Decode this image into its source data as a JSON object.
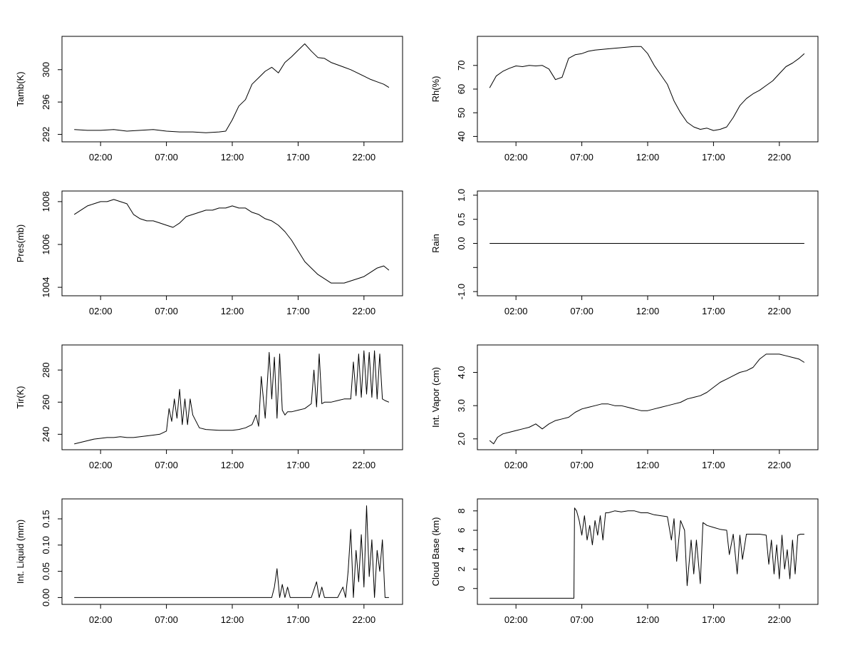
{
  "chart_data": [
    {
      "type": "line",
      "ylabel": "Tamb(K)",
      "xlabel": "",
      "x_ticks": [
        "02:00",
        "07:00",
        "12:00",
        "17:00",
        "22:00"
      ],
      "y_ticks": [
        292,
        296,
        300
      ],
      "ylim": [
        291.6,
        303.6
      ],
      "xlim": [
        0,
        24
      ],
      "series": [
        {
          "x": [
            0,
            1,
            2,
            3,
            4,
            5,
            6,
            7,
            8,
            9,
            10,
            11,
            11.5,
            12,
            12.5,
            13,
            13.5,
            14,
            14.5,
            15,
            15.5,
            16,
            16.5,
            17,
            17.5,
            18,
            18.5,
            19,
            19.5,
            20,
            20.5,
            21,
            21.5,
            22,
            22.5,
            23,
            23.5,
            23.9
          ],
          "y": [
            292.6,
            292.5,
            292.5,
            292.6,
            292.4,
            292.5,
            292.6,
            292.4,
            292.3,
            292.3,
            292.2,
            292.3,
            292.4,
            293.8,
            295.5,
            296.3,
            298.2,
            299.0,
            299.8,
            300.3,
            299.6,
            300.9,
            301.6,
            302.4,
            303.2,
            302.3,
            301.5,
            301.4,
            300.9,
            300.6,
            300.3,
            300.0,
            299.6,
            299.2,
            298.8,
            298.5,
            298.2,
            297.8
          ]
        }
      ]
    },
    {
      "type": "line",
      "ylabel": "Rh(%)",
      "xlabel": "",
      "x_ticks": [
        "02:00",
        "07:00",
        "12:00",
        "17:00",
        "22:00"
      ],
      "y_ticks": [
        40,
        50,
        60,
        70
      ],
      "ylim": [
        39.5,
        80.5
      ],
      "xlim": [
        0,
        24
      ],
      "series": [
        {
          "x": [
            0,
            0.5,
            1,
            1.5,
            2,
            2.5,
            3,
            3.5,
            4,
            4.5,
            5,
            5.5,
            6,
            6.5,
            7,
            7.5,
            8,
            9,
            10,
            11,
            11.5,
            12,
            12.5,
            13,
            13.5,
            14,
            14.5,
            15,
            15.5,
            16,
            16.5,
            17,
            17.5,
            18,
            18.5,
            19,
            19.5,
            20,
            20.5,
            21,
            21.5,
            22,
            22.5,
            23,
            23.5,
            23.9
          ],
          "y": [
            60.5,
            65.5,
            67.5,
            68.8,
            69.8,
            69.5,
            70.0,
            69.8,
            70.0,
            68.5,
            64.0,
            65.0,
            73.0,
            74.5,
            75.0,
            76.0,
            76.5,
            77.0,
            77.5,
            78.0,
            78.0,
            75.0,
            70.0,
            66.0,
            62.0,
            55.0,
            50.0,
            46.0,
            44.0,
            43.0,
            43.5,
            42.5,
            43.0,
            44.0,
            48.0,
            53.0,
            56.0,
            58.0,
            59.5,
            61.5,
            63.5,
            66.5,
            69.5,
            71.0,
            73.0,
            75.0
          ]
        }
      ]
    },
    {
      "type": "line",
      "ylabel": "Pres(mb)",
      "xlabel": "",
      "x_ticks": [
        "02:00",
        "07:00",
        "12:00",
        "17:00",
        "22:00"
      ],
      "y_ticks": [
        1004,
        1006,
        1008
      ],
      "ylim": [
        1003.8,
        1008.3
      ],
      "xlim": [
        0,
        24
      ],
      "series": [
        {
          "x": [
            0,
            0.5,
            1,
            1.5,
            2,
            2.5,
            3,
            3.5,
            4,
            4.5,
            5,
            5.5,
            6,
            6.5,
            7,
            7.5,
            8,
            8.5,
            9,
            9.5,
            10,
            10.5,
            11,
            11.5,
            12,
            12.5,
            13,
            13.5,
            14,
            14.5,
            15,
            15.5,
            16,
            16.5,
            17,
            17.5,
            18,
            18.5,
            19,
            19.5,
            20,
            20.5,
            21,
            21.5,
            22,
            22.5,
            23,
            23.5,
            23.9
          ],
          "y": [
            1007.4,
            1007.6,
            1007.8,
            1007.9,
            1008.0,
            1008.0,
            1008.1,
            1008.0,
            1007.9,
            1007.4,
            1007.2,
            1007.1,
            1007.1,
            1007.0,
            1006.9,
            1006.8,
            1007.0,
            1007.3,
            1007.4,
            1007.5,
            1007.6,
            1007.6,
            1007.7,
            1007.7,
            1007.8,
            1007.7,
            1007.7,
            1007.5,
            1007.4,
            1007.2,
            1007.1,
            1006.9,
            1006.6,
            1006.2,
            1005.7,
            1005.2,
            1004.9,
            1004.6,
            1004.4,
            1004.2,
            1004.2,
            1004.2,
            1004.3,
            1004.4,
            1004.5,
            1004.7,
            1004.9,
            1005.0,
            1004.8
          ]
        }
      ]
    },
    {
      "type": "line",
      "ylabel": "Rain",
      "xlabel": "",
      "x_ticks": [
        "02:00",
        "07:00",
        "12:00",
        "17:00",
        "22:00"
      ],
      "y_ticks": [
        -1.0,
        -0.5,
        0.0,
        0.5,
        1.0
      ],
      "y_tick_labels": [
        "-1.0",
        "",
        "0.0",
        "0.5",
        "1.0"
      ],
      "ylim": [
        -1.0,
        1.0
      ],
      "xlim": [
        0,
        24
      ],
      "series": [
        {
          "x": [
            0,
            23.9
          ],
          "y": [
            0,
            0
          ]
        }
      ]
    },
    {
      "type": "line",
      "ylabel": "Tir(K)",
      "xlabel": "",
      "x_ticks": [
        "02:00",
        "07:00",
        "12:00",
        "17:00",
        "22:00"
      ],
      "y_ticks": [
        240,
        260,
        280
      ],
      "ylim": [
        233,
        293
      ],
      "xlim": [
        0,
        24
      ],
      "series": [
        {
          "x": [
            0,
            0.5,
            1,
            1.5,
            2,
            2.5,
            3,
            3.5,
            4,
            4.5,
            5,
            5.5,
            6,
            6.5,
            7,
            7.2,
            7.4,
            7.6,
            7.8,
            8.0,
            8.2,
            8.4,
            8.6,
            8.8,
            9.0,
            9.5,
            10,
            11,
            12,
            12.5,
            13,
            13.5,
            13.8,
            14.0,
            14.2,
            14.5,
            14.8,
            15.0,
            15.2,
            15.4,
            15.6,
            15.8,
            16.0,
            16.2,
            16.5,
            17,
            17.5,
            18,
            18.2,
            18.4,
            18.6,
            18.8,
            19.0,
            19.5,
            20,
            20.5,
            21,
            21.2,
            21.4,
            21.6,
            21.8,
            22.0,
            22.2,
            22.4,
            22.6,
            22.8,
            23.0,
            23.2,
            23.4,
            23.6,
            23.9
          ],
          "y": [
            234,
            235,
            236,
            237,
            237.5,
            238,
            238,
            238.5,
            238,
            238,
            238.5,
            239,
            239.5,
            240,
            242,
            256,
            248,
            262,
            250,
            268,
            246,
            262,
            246,
            262,
            252,
            244,
            243,
            242.5,
            242.5,
            243,
            244,
            246,
            252,
            245,
            276,
            250,
            291,
            262,
            288,
            250,
            290,
            255,
            252,
            254,
            254,
            255,
            256,
            259,
            280,
            257,
            290,
            259,
            260,
            260,
            261,
            262,
            262,
            285,
            264,
            290,
            263,
            292,
            265,
            291,
            263,
            292,
            262,
            290,
            262,
            261,
            260
          ]
        }
      ]
    },
    {
      "type": "line",
      "ylabel": "Int. Vapor (cm)",
      "xlabel": "",
      "x_ticks": [
        "02:00",
        "07:00",
        "12:00",
        "17:00",
        "22:00"
      ],
      "y_ticks": [
        2.0,
        3.0,
        4.0
      ],
      "y_tick_labels": [
        "2.0",
        "3.0",
        "4.0"
      ],
      "ylim": [
        1.8,
        4.7
      ],
      "xlim": [
        0,
        24
      ],
      "series": [
        {
          "x": [
            0,
            0.3,
            0.6,
            1,
            1.5,
            2,
            2.5,
            3,
            3.5,
            4,
            4.5,
            5,
            5.5,
            6,
            6.5,
            7,
            7.5,
            8,
            8.5,
            9,
            9.5,
            10,
            10.5,
            11,
            11.5,
            12,
            12.5,
            13,
            13.5,
            14,
            14.5,
            15,
            15.5,
            16,
            16.5,
            17,
            17.5,
            18,
            18.5,
            19,
            19.5,
            20,
            20.5,
            21,
            21.5,
            22,
            22.5,
            23,
            23.5,
            23.9
          ],
          "y": [
            1.95,
            1.85,
            2.05,
            2.15,
            2.2,
            2.25,
            2.3,
            2.35,
            2.45,
            2.3,
            2.45,
            2.55,
            2.6,
            2.65,
            2.8,
            2.9,
            2.95,
            3.0,
            3.05,
            3.05,
            3.0,
            3.0,
            2.95,
            2.9,
            2.85,
            2.85,
            2.9,
            2.95,
            3.0,
            3.05,
            3.1,
            3.2,
            3.25,
            3.3,
            3.4,
            3.55,
            3.7,
            3.8,
            3.9,
            4.0,
            4.05,
            4.15,
            4.4,
            4.55,
            4.55,
            4.55,
            4.5,
            4.45,
            4.4,
            4.3
          ]
        }
      ]
    },
    {
      "type": "line",
      "ylabel": "Int. Liquid (mm)",
      "xlabel": "",
      "x_ticks": [
        "02:00",
        "07:00",
        "12:00",
        "17:00",
        "22:00"
      ],
      "y_ticks": [
        0.0,
        0.05,
        0.1,
        0.15
      ],
      "y_tick_labels": [
        "0.00",
        "0.05",
        "0.10",
        "0.15"
      ],
      "ylim": [
        -0.005,
        0.18
      ],
      "xlim": [
        0,
        24
      ],
      "series": [
        {
          "x": [
            0,
            15.0,
            15.2,
            15.4,
            15.6,
            15.8,
            16.0,
            16.2,
            16.4,
            17,
            18,
            18.4,
            18.6,
            18.8,
            19.0,
            19.2,
            20,
            20.4,
            20.6,
            20.8,
            21.0,
            21.2,
            21.4,
            21.6,
            21.8,
            22.0,
            22.2,
            22.4,
            22.6,
            22.8,
            23.0,
            23.2,
            23.4,
            23.6,
            23.9
          ],
          "y": [
            0,
            0,
            0.02,
            0.055,
            0,
            0.025,
            0,
            0.02,
            0,
            0,
            0,
            0.03,
            0,
            0.02,
            0,
            0,
            0,
            0.02,
            0,
            0.05,
            0.13,
            0,
            0.09,
            0.03,
            0.12,
            0.02,
            0.175,
            0.04,
            0.11,
            0,
            0.09,
            0.05,
            0.11,
            0,
            0
          ]
        }
      ]
    },
    {
      "type": "line",
      "ylabel": "Cloud Base (km)",
      "xlabel": "",
      "x_ticks": [
        "02:00",
        "07:00",
        "12:00",
        "17:00",
        "22:00"
      ],
      "y_ticks": [
        0,
        2,
        4,
        6,
        8
      ],
      "ylim": [
        -1.2,
        8.8
      ],
      "xlim": [
        0,
        24
      ],
      "series": [
        {
          "x": [
            0,
            6.4,
            6.45,
            6.6,
            6.8,
            7.0,
            7.2,
            7.4,
            7.6,
            7.8,
            8.0,
            8.2,
            8.4,
            8.6,
            8.8,
            9.0,
            9.5,
            10,
            10.5,
            11,
            11.5,
            12,
            12.5,
            13,
            13.5,
            13.8,
            14.0,
            14.2,
            14.5,
            14.8,
            15.0,
            15.3,
            15.5,
            15.7,
            16.0,
            16.2,
            16.5,
            17,
            17.5,
            18,
            18.2,
            18.5,
            18.8,
            19.0,
            19.2,
            19.5,
            20,
            20.5,
            21,
            21.2,
            21.4,
            21.6,
            21.8,
            22.0,
            22.2,
            22.4,
            22.6,
            22.8,
            23.0,
            23.2,
            23.4,
            23.6,
            23.9
          ],
          "y": [
            -1,
            -1,
            8.3,
            8.0,
            7.0,
            5.5,
            7.5,
            5.0,
            6.5,
            4.5,
            7.0,
            5.5,
            7.5,
            5.0,
            7.8,
            7.8,
            8.0,
            7.9,
            8.0,
            8.0,
            7.8,
            7.8,
            7.6,
            7.5,
            7.4,
            5.0,
            7.2,
            2.8,
            7.0,
            6.0,
            0.3,
            5.0,
            1.5,
            5.0,
            0.5,
            6.8,
            6.5,
            6.3,
            6.1,
            6.0,
            3.5,
            5.6,
            1.5,
            5.5,
            3.0,
            5.6,
            5.6,
            5.6,
            5.5,
            2.5,
            5.0,
            1.5,
            4.5,
            1.0,
            5.5,
            2.0,
            4.0,
            1.0,
            5.0,
            1.5,
            5.5,
            5.6,
            5.6
          ]
        }
      ]
    }
  ]
}
